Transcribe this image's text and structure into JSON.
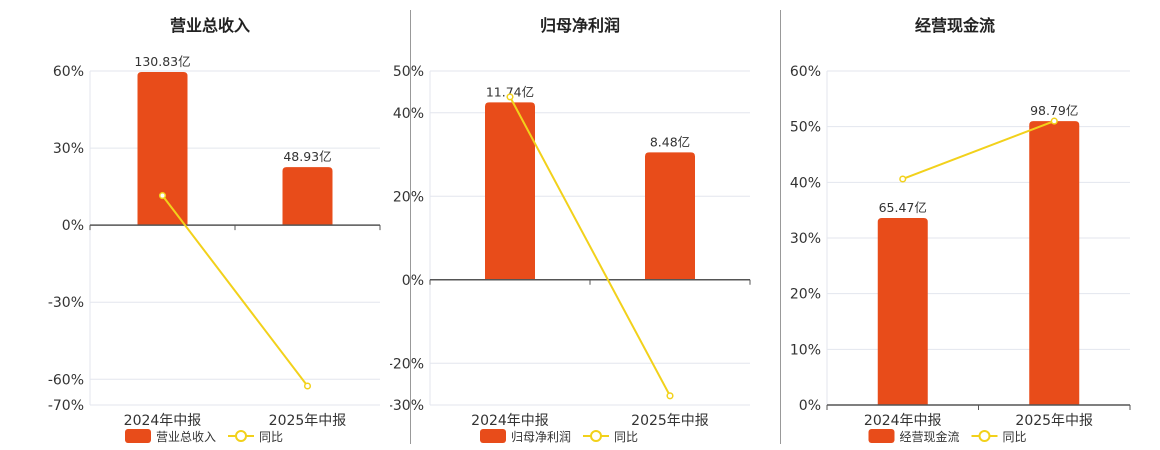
{
  "colors": {
    "bar": "#E84C1A",
    "line": "#F2D11B",
    "grid": "#E3E6EE",
    "axis": "#555555",
    "divider": "#999999"
  },
  "chart_data": [
    {
      "type": "bar",
      "title": "营业总收入",
      "categories": [
        "2024年中报",
        "2025年中报"
      ],
      "bar_values": [
        59.6,
        22.6
      ],
      "bar_labels": [
        "130.83亿",
        "48.93亿"
      ],
      "line_values": [
        11.5,
        -62.6
      ],
      "ylim": [
        -70,
        60
      ],
      "yticks": [
        60,
        30,
        0,
        -30,
        -60,
        -70
      ],
      "ytick_labels": [
        "60%",
        "30%",
        "0%",
        "-30%",
        "-60%",
        "-70%"
      ],
      "legend": [
        "营业总收入",
        "同比"
      ],
      "legend_placement": "bottom"
    },
    {
      "type": "bar",
      "title": "归母净利润",
      "categories": [
        "2024年中报",
        "2025年中报"
      ],
      "bar_values": [
        42.5,
        30.5
      ],
      "bar_labels": [
        "11.74亿",
        "8.48亿"
      ],
      "line_values": [
        43.8,
        -27.8
      ],
      "ylim": [
        -30,
        50
      ],
      "yticks": [
        50,
        40,
        20,
        0,
        -20,
        -30
      ],
      "ytick_labels": [
        "50%",
        "40%",
        "20%",
        "0%",
        "-20%",
        "-30%"
      ],
      "legend": [
        "归母净利润",
        "同比"
      ],
      "legend_placement": "bottom"
    },
    {
      "type": "bar",
      "title": "经营现金流",
      "categories": [
        "2024年中报",
        "2025年中报"
      ],
      "bar_values": [
        33.6,
        51.0
      ],
      "bar_labels": [
        "65.47亿",
        "98.79亿"
      ],
      "line_values": [
        40.6,
        51.0
      ],
      "ylim": [
        0,
        60
      ],
      "yticks": [
        60,
        50,
        40,
        30,
        20,
        10,
        0
      ],
      "ytick_labels": [
        "60%",
        "50%",
        "40%",
        "30%",
        "20%",
        "10%",
        "0%"
      ],
      "legend": [
        "经营现金流",
        "同比"
      ],
      "legend_placement": "bottom"
    }
  ]
}
